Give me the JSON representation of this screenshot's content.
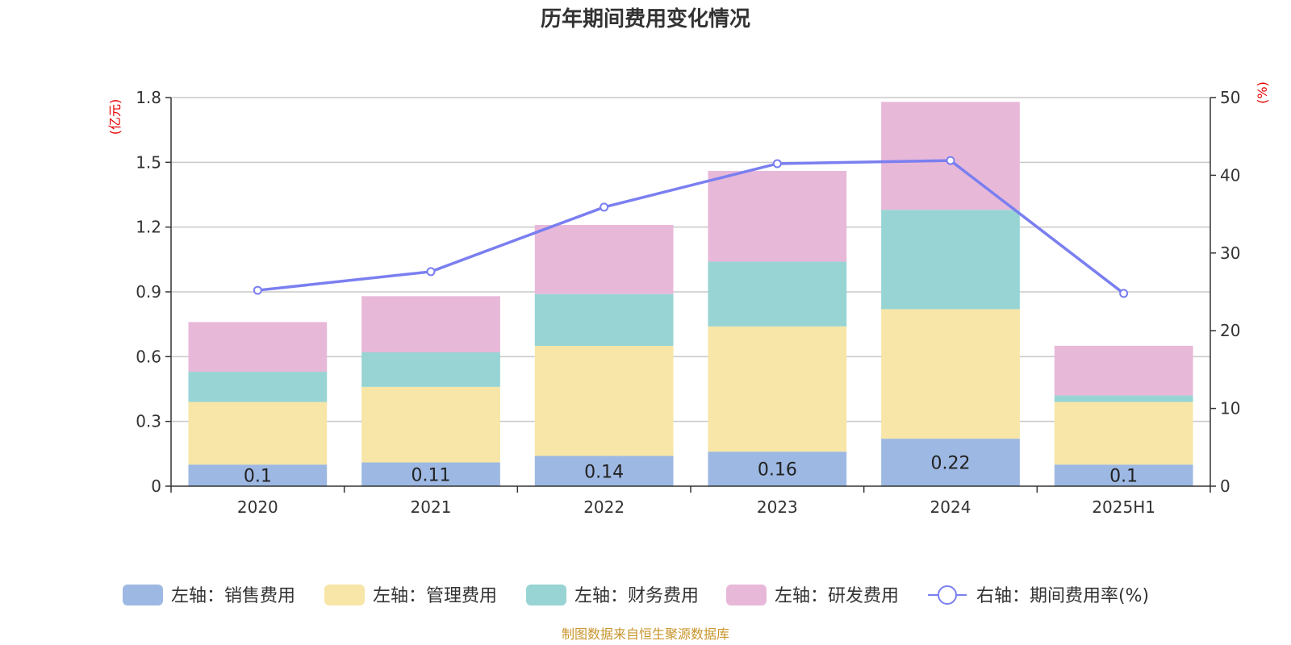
{
  "title": "历年期间费用变化情况",
  "source": "制图数据来自恒生聚源数据库",
  "colors": {
    "sales": "#9db8e2",
    "admin": "#f7e6a7",
    "finance": "#98d4d4",
    "rd": "#e8b8d9",
    "rate": "#7a7ff0",
    "unit": "#e60000",
    "source": "#c8952c"
  },
  "chart_data": {
    "type": "bar",
    "stacked": true,
    "title": "历年期间费用变化情况",
    "categories": [
      "2020",
      "2021",
      "2022",
      "2023",
      "2024",
      "2025H1"
    ],
    "left_axis": {
      "unit": "(亿元)",
      "ylim": [
        0,
        1.8
      ],
      "ticks": [
        "0",
        "0.3",
        "0.6",
        "0.9",
        "1.2",
        "1.5",
        "1.8"
      ]
    },
    "right_axis": {
      "unit": "(%)",
      "ylim": [
        0,
        50
      ],
      "ticks": [
        "0",
        "10",
        "20",
        "30",
        "40",
        "50"
      ]
    },
    "series": [
      {
        "name": "左轴：销售费用",
        "axis": "left",
        "values": [
          0.1,
          0.11,
          0.14,
          0.16,
          0.22,
          0.1
        ],
        "labels": [
          "0.1",
          "0.11",
          "0.14",
          "0.16",
          "0.22",
          "0.1"
        ]
      },
      {
        "name": "左轴：管理费用",
        "axis": "left",
        "values": [
          0.29,
          0.35,
          0.51,
          0.58,
          0.6,
          0.29
        ]
      },
      {
        "name": "左轴：财务费用",
        "axis": "left",
        "values": [
          0.14,
          0.16,
          0.24,
          0.3,
          0.46,
          0.03
        ]
      },
      {
        "name": "左轴：研发费用",
        "axis": "left",
        "values": [
          0.23,
          0.26,
          0.32,
          0.42,
          0.5,
          0.23
        ]
      },
      {
        "name": "右轴：期间费用率(%)",
        "axis": "right",
        "type": "line",
        "values": [
          25.2,
          27.6,
          35.9,
          41.5,
          41.9,
          24.8
        ]
      }
    ],
    "grid": true,
    "legend_position": "bottom"
  }
}
